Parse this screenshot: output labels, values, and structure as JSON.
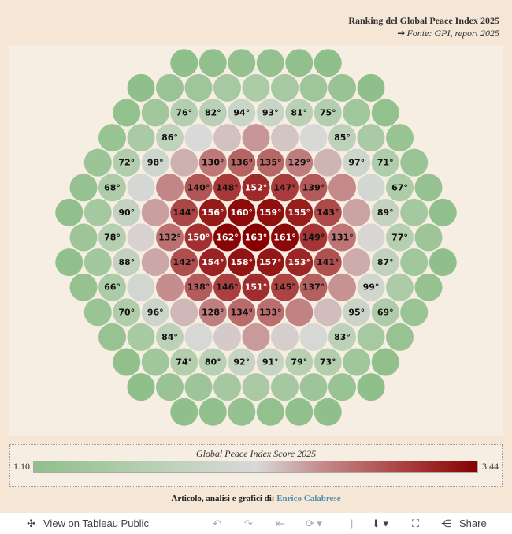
{
  "header": {
    "title": "Ranking del Global Peace Index 2025",
    "source": "➔ Fonte:  GPI, report 2025"
  },
  "chart_data": {
    "type": "packed-bubble",
    "title": "Ranking del Global Peace Index 2025",
    "total_countries": 163,
    "color_measure": "Global Peace Index Score 2025",
    "color_range": [
      1.1,
      3.44
    ],
    "labeled_ranks": [
      "66°",
      "67°",
      "68°",
      "69°",
      "70°",
      "71°",
      "72°",
      "73°",
      "74°",
      "75°",
      "76°",
      "77°",
      "78°",
      "79°",
      "80°",
      "81°",
      "82°",
      "83°",
      "84°",
      "85°",
      "86°",
      "87°",
      "88°",
      "89°",
      "90°",
      "91°",
      "92°",
      "93°",
      "94°",
      "95°",
      "96°",
      "97°",
      "98°",
      "99°",
      "128°",
      "129°",
      "130°",
      "131°",
      "132°",
      "133°",
      "134°",
      "135°",
      "136°",
      "137°",
      "138°",
      "139°",
      "140°",
      "141°",
      "142°",
      "143°",
      "144°",
      "145°",
      "146°",
      "147°",
      "148°",
      "149°",
      "150°",
      "151°",
      "152°",
      "153°",
      "154°",
      "155°",
      "156°",
      "157°",
      "158°",
      "159°",
      "160°",
      "161°",
      "162°",
      "163°"
    ]
  },
  "legend": {
    "title": "Global Peace Index Score 2025",
    "min": "1.10",
    "max": "3.44"
  },
  "credit": {
    "label": "Articolo, analisi e grafici di:",
    "author": "Enrico Calabrese"
  },
  "toolbar": {
    "view": "View on Tableau Public",
    "share": "Share"
  }
}
